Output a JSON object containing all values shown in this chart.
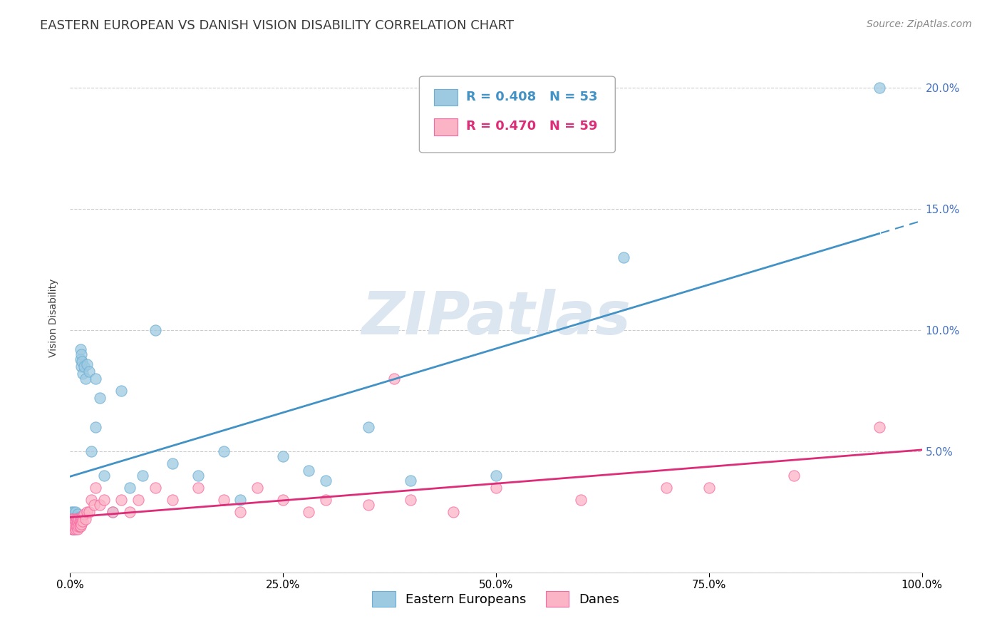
{
  "title": "EASTERN EUROPEAN VS DANISH VISION DISABILITY CORRELATION CHART",
  "source": "Source: ZipAtlas.com",
  "ylabel": "Vision Disability",
  "watermark": "ZIPatlas",
  "series": [
    {
      "label": "Eastern Europeans",
      "R": 0.408,
      "N": 53,
      "color": "#9ecae1",
      "edge_color": "#6baed6",
      "line_color": "#4292c6",
      "x": [
        0.001,
        0.002,
        0.002,
        0.003,
        0.003,
        0.004,
        0.004,
        0.005,
        0.005,
        0.006,
        0.006,
        0.007,
        0.007,
        0.008,
        0.008,
        0.009,
        0.009,
        0.01,
        0.01,
        0.011,
        0.011,
        0.012,
        0.012,
        0.013,
        0.013,
        0.014,
        0.015,
        0.016,
        0.018,
        0.02,
        0.022,
        0.025,
        0.03,
        0.03,
        0.035,
        0.04,
        0.05,
        0.06,
        0.07,
        0.085,
        0.1,
        0.12,
        0.15,
        0.18,
        0.2,
        0.25,
        0.28,
        0.3,
        0.35,
        0.4,
        0.5,
        0.65,
        0.95
      ],
      "y": [
        0.025,
        0.02,
        0.02,
        0.022,
        0.018,
        0.025,
        0.02,
        0.022,
        0.018,
        0.025,
        0.02,
        0.023,
        0.019,
        0.021,
        0.02,
        0.024,
        0.019,
        0.022,
        0.02,
        0.023,
        0.019,
        0.092,
        0.088,
        0.09,
        0.085,
        0.087,
        0.082,
        0.085,
        0.08,
        0.086,
        0.083,
        0.05,
        0.08,
        0.06,
        0.072,
        0.04,
        0.025,
        0.075,
        0.035,
        0.04,
        0.1,
        0.045,
        0.04,
        0.05,
        0.03,
        0.048,
        0.042,
        0.038,
        0.06,
        0.038,
        0.04,
        0.13,
        0.2
      ]
    },
    {
      "label": "Danes",
      "R": 0.47,
      "N": 59,
      "color": "#fbb4c6",
      "edge_color": "#f768a1",
      "line_color": "#de2d78",
      "x": [
        0.001,
        0.002,
        0.002,
        0.003,
        0.003,
        0.004,
        0.004,
        0.005,
        0.005,
        0.006,
        0.006,
        0.007,
        0.007,
        0.008,
        0.008,
        0.009,
        0.009,
        0.01,
        0.01,
        0.011,
        0.011,
        0.012,
        0.012,
        0.013,
        0.013,
        0.014,
        0.015,
        0.016,
        0.018,
        0.02,
        0.022,
        0.025,
        0.028,
        0.03,
        0.035,
        0.04,
        0.05,
        0.06,
        0.07,
        0.08,
        0.1,
        0.12,
        0.15,
        0.18,
        0.2,
        0.22,
        0.25,
        0.28,
        0.3,
        0.35,
        0.38,
        0.4,
        0.45,
        0.5,
        0.6,
        0.7,
        0.75,
        0.85,
        0.95
      ],
      "y": [
        0.022,
        0.02,
        0.018,
        0.021,
        0.019,
        0.022,
        0.018,
        0.021,
        0.019,
        0.022,
        0.018,
        0.021,
        0.019,
        0.022,
        0.019,
        0.021,
        0.018,
        0.022,
        0.019,
        0.021,
        0.019,
        0.022,
        0.019,
        0.021,
        0.02,
        0.023,
        0.021,
        0.024,
        0.022,
        0.025,
        0.025,
        0.03,
        0.028,
        0.035,
        0.028,
        0.03,
        0.025,
        0.03,
        0.025,
        0.03,
        0.035,
        0.03,
        0.035,
        0.03,
        0.025,
        0.035,
        0.03,
        0.025,
        0.03,
        0.028,
        0.08,
        0.03,
        0.025,
        0.035,
        0.03,
        0.035,
        0.035,
        0.04,
        0.06
      ]
    }
  ],
  "xlim": [
    0.0,
    1.0
  ],
  "ylim": [
    0.0,
    0.21
  ],
  "yticks": [
    0.0,
    0.05,
    0.1,
    0.15,
    0.2
  ],
  "ytick_labels_right": [
    "",
    "5.0%",
    "10.0%",
    "15.0%",
    "20.0%"
  ],
  "xticks": [
    0.0,
    0.25,
    0.5,
    0.75,
    1.0
  ],
  "xtick_labels": [
    "0.0%",
    "25.0%",
    "50.0%",
    "75.0%",
    "100.0%"
  ],
  "grid_color": "#cccccc",
  "background_color": "#ffffff",
  "title_color": "#3d6199",
  "title_fontsize": 13,
  "axis_label_fontsize": 10,
  "tick_fontsize": 11,
  "legend_fontsize": 13,
  "source_fontsize": 10,
  "watermark_color": "#dce6f0",
  "watermark_fontsize": 60,
  "blue_line_solid_end": 0.78,
  "right_tick_color": "#4472c4"
}
